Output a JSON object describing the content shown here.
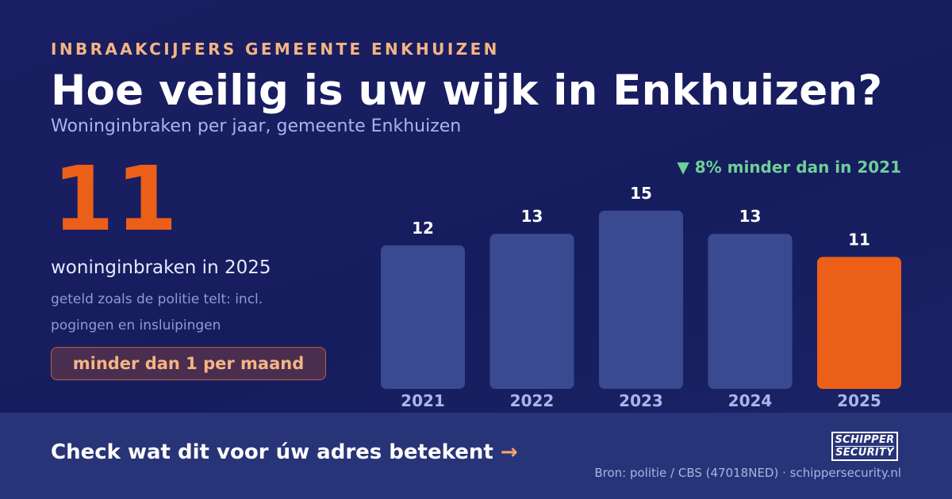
{
  "header": {
    "eyebrow": "INBRAAKCIJFERS GEMEENTE ENKHUIZEN",
    "title": "Hoe veilig is uw wijk in Enkhuizen?",
    "subtitle": "Woninginbraken per jaar, gemeente Enkhuizen"
  },
  "highlight": {
    "value": "11",
    "caption": "woninginbraken in 2025",
    "note": "geteld zoals de politie telt: incl. pogingen en insluipingen",
    "pill": "minder dan 1 per maand"
  },
  "trend": {
    "label": "▼ 8% minder dan in 2021"
  },
  "chart_data": {
    "type": "bar",
    "categories": [
      "2021",
      "2022",
      "2023",
      "2024",
      "2025"
    ],
    "values": [
      12,
      13,
      15,
      13,
      11
    ],
    "highlight_category": "2025",
    "colors": {
      "default": "#3a4a90",
      "highlight": "#ec5f19",
      "value_label": "#ffffff",
      "category_label": "#a8b6ea"
    }
  },
  "footer": {
    "cta": "Check wat dit voor úw adres betekent",
    "cta_arrow": "→",
    "source": "Bron: politie / CBS (47018NED) · schippersecurity.nl",
    "logo_line_1": "SCHIPPER",
    "logo_line_2": "SECURITY"
  }
}
